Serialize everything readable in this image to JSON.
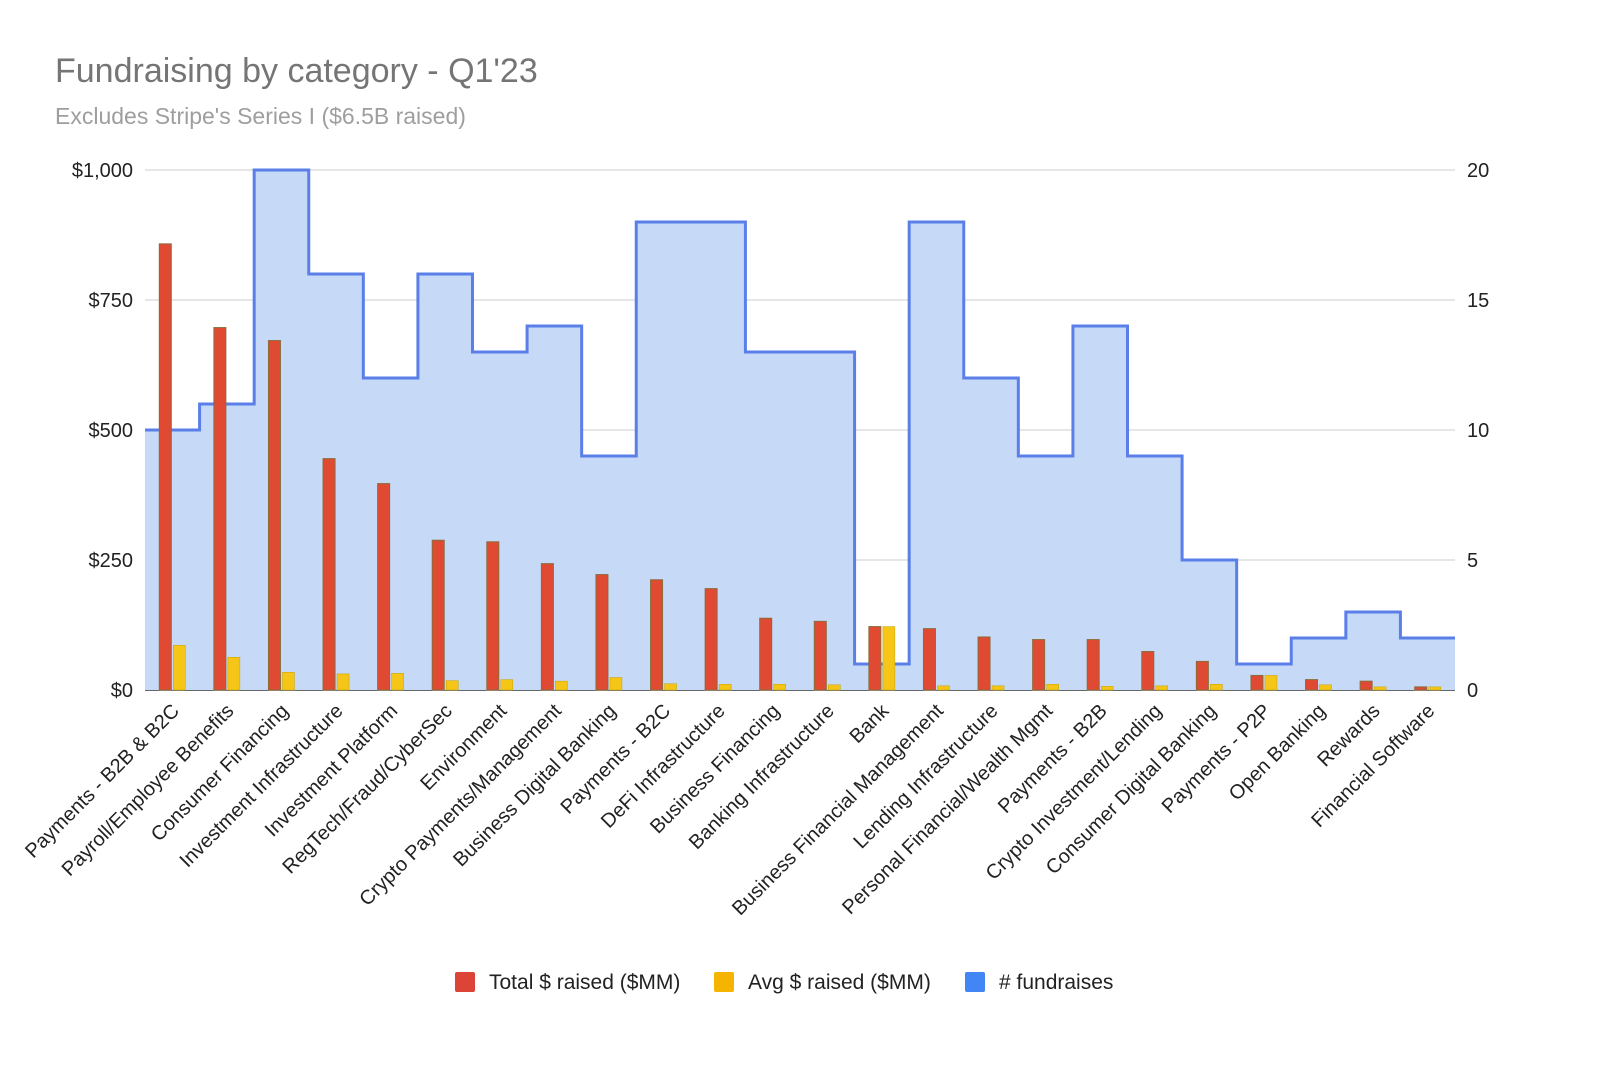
{
  "chart_data": {
    "type": "bar",
    "title": "Fundraising by category - Q1'23",
    "subtitle": "Excludes Stripe's Series I ($6.5B raised)",
    "categories": [
      "Payments - B2B & B2C",
      "Payroll/Employee Benefits",
      "Consumer Financing",
      "Investment Infrastructure",
      "Investment Platform",
      "RegTech/Fraud/CyberSec",
      "Environment",
      "Crypto Payments/Management",
      "Business Digital Banking",
      "Payments - B2C",
      "DeFi Infrastructure",
      "Business Financing",
      "Banking Infrastructure",
      "Bank",
      "Business Financial Management",
      "Lending Infrastructure",
      "Personal Financial/Wealth Mgmt",
      "Payments - B2B",
      "Crypto Investment/Lending",
      "Consumer Digital Banking",
      "Payments - P2P",
      "Open Banking",
      "Rewards",
      "Financial Software"
    ],
    "series": [
      {
        "name": "Total $ raised ($MM)",
        "type": "bar",
        "axis": "left",
        "color": "#db4437",
        "values": [
          858,
          697,
          672,
          445,
          397,
          288,
          285,
          243,
          222,
          212,
          195,
          138,
          132,
          122,
          118,
          102,
          97,
          97,
          74,
          55,
          28,
          20,
          17,
          6
        ]
      },
      {
        "name": "Avg $ raised ($MM)",
        "type": "bar",
        "axis": "left",
        "color": "#f4b400",
        "values": [
          86,
          63,
          34,
          31,
          32,
          18,
          20,
          17,
          24,
          12,
          11,
          11,
          10,
          122,
          8,
          8,
          11,
          7,
          8,
          11,
          28,
          10,
          6,
          6
        ]
      },
      {
        "name": "# fundraises",
        "type": "stepped-area",
        "axis": "right",
        "color": "#4285f4",
        "values": [
          10,
          11,
          20,
          16,
          12,
          16,
          13,
          14,
          9,
          18,
          18,
          13,
          13,
          1,
          18,
          12,
          9,
          14,
          9,
          5,
          1,
          2,
          3,
          2
        ]
      }
    ],
    "y_left": {
      "min": 0,
      "max": 1000,
      "ticks": [
        0,
        250,
        500,
        750,
        1000
      ],
      "tick_labels": [
        "$0",
        "$250",
        "$500",
        "$750",
        "$1,000"
      ]
    },
    "y_right": {
      "min": 0,
      "max": 20,
      "ticks": [
        0,
        5,
        10,
        15,
        20
      ],
      "tick_labels": [
        "0",
        "5",
        "10",
        "15",
        "20"
      ]
    },
    "grid": true,
    "legend_position": "bottom"
  }
}
